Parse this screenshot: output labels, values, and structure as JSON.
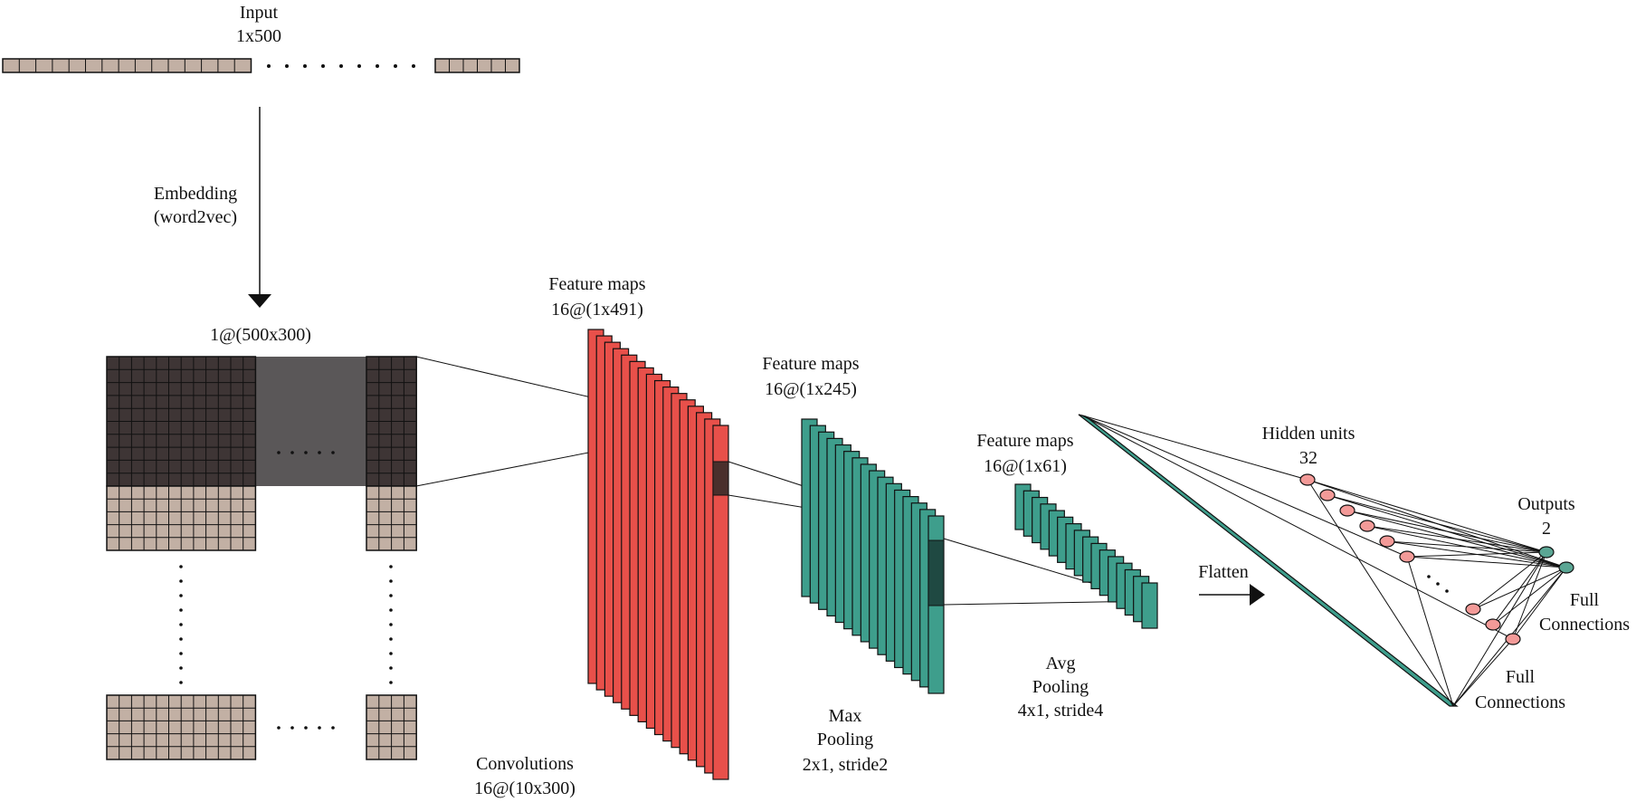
{
  "colors": {
    "input_cell": "#c2b0a4",
    "embed_dark": "#3e3535",
    "embed_gray": "#5a5758",
    "conv_red": "#e8504a",
    "pool_teal": "#3e9e8c",
    "dark_patch": "#4a2f2c",
    "dark_teal_patch": "#1f4942",
    "hidden_pink": "#f39a98",
    "output_teal": "#5ba694",
    "stroke": "#111111"
  },
  "labels": {
    "input_title": "Input",
    "input_dims": "1x500",
    "embedding": "Embedding",
    "embedding_method": "(word2vec)",
    "embed_dims": "1@(500x300)",
    "conv_maps_title": "Feature maps",
    "conv_maps_dims": "16@(1x491)",
    "convolutions": "Convolutions",
    "convolutions_dims": "16@(10x300)",
    "max_maps_title": "Feature maps",
    "max_maps_dims": "16@(1x245)",
    "max_pool_1": "Max",
    "max_pool_2": "Pooling",
    "max_pool_3": "2x1, stride2",
    "avg_maps_title": "Feature maps",
    "avg_maps_dims": "16@(1x61)",
    "avg_pool_1": "Avg",
    "avg_pool_2": "Pooling",
    "avg_pool_3": "4x1, stride4",
    "flatten": "Flatten",
    "hidden_title": "Hidden units",
    "hidden_count": "32",
    "outputs_title": "Outputs",
    "outputs_count": "2",
    "full_conn_1a": "Full",
    "full_conn_1b": "Connections",
    "full_conn_2a": "Full",
    "full_conn_2b": "Connections"
  }
}
